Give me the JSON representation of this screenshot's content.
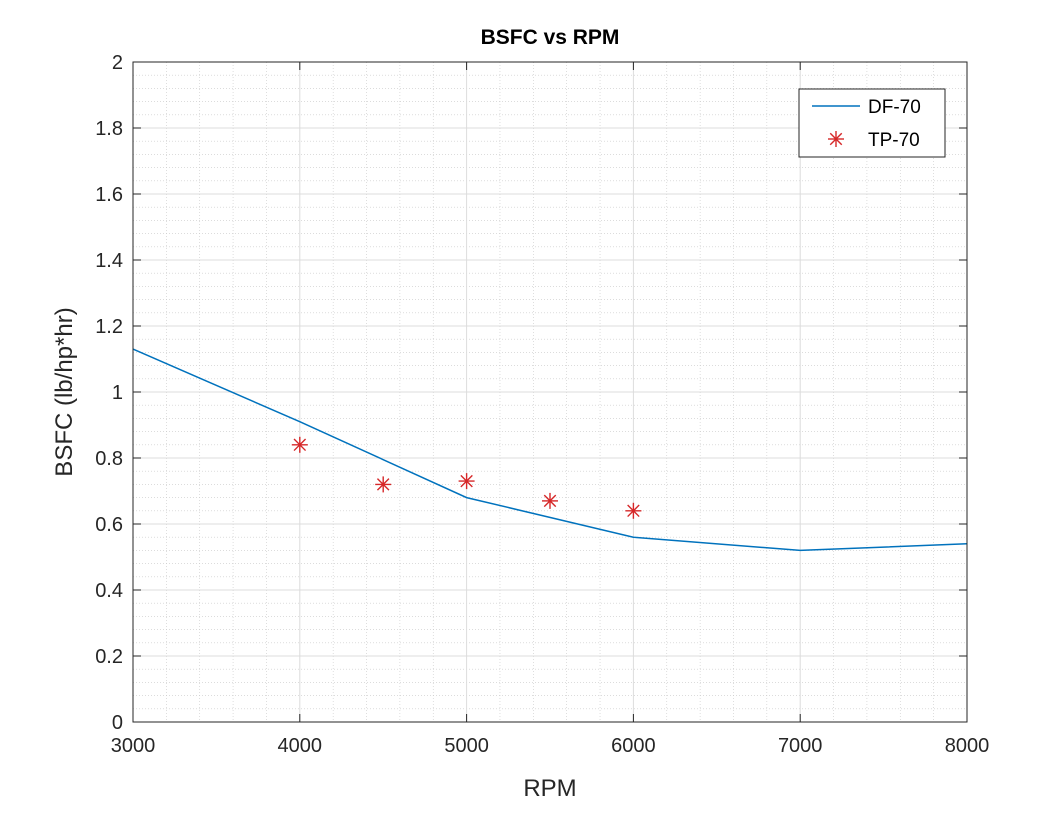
{
  "chart_data": {
    "type": "line",
    "title": "BSFC vs RPM",
    "xlabel": "RPM",
    "ylabel": "BSFC (lb/hp*hr)",
    "xlim": [
      3000,
      8000
    ],
    "ylim": [
      0,
      2
    ],
    "xticks": [
      3000,
      4000,
      5000,
      6000,
      7000,
      8000
    ],
    "yticks": [
      0,
      0.2,
      0.4,
      0.6,
      0.8,
      1,
      1.2,
      1.4,
      1.6,
      1.8,
      2
    ],
    "xtick_labels": [
      "3000",
      "4000",
      "5000",
      "6000",
      "7000",
      "8000"
    ],
    "ytick_labels": [
      "0",
      "0.2",
      "0.4",
      "0.6",
      "0.8",
      "1",
      "1.2",
      "1.4",
      "1.6",
      "1.8",
      "2"
    ],
    "grid": "major and minor",
    "legend_position": "top-right",
    "series": [
      {
        "name": "DF-70",
        "style": "line",
        "color": "#0072BD",
        "x": [
          3000,
          4000,
          5000,
          6000,
          7000,
          8000
        ],
        "y": [
          1.13,
          0.91,
          0.68,
          0.56,
          0.52,
          0.54
        ]
      },
      {
        "name": "TP-70",
        "style": "marker-asterisk",
        "color": "#D62728",
        "x": [
          4000,
          4500,
          5000,
          5500,
          6000
        ],
        "y": [
          0.84,
          0.72,
          0.73,
          0.67,
          0.64
        ]
      }
    ]
  }
}
